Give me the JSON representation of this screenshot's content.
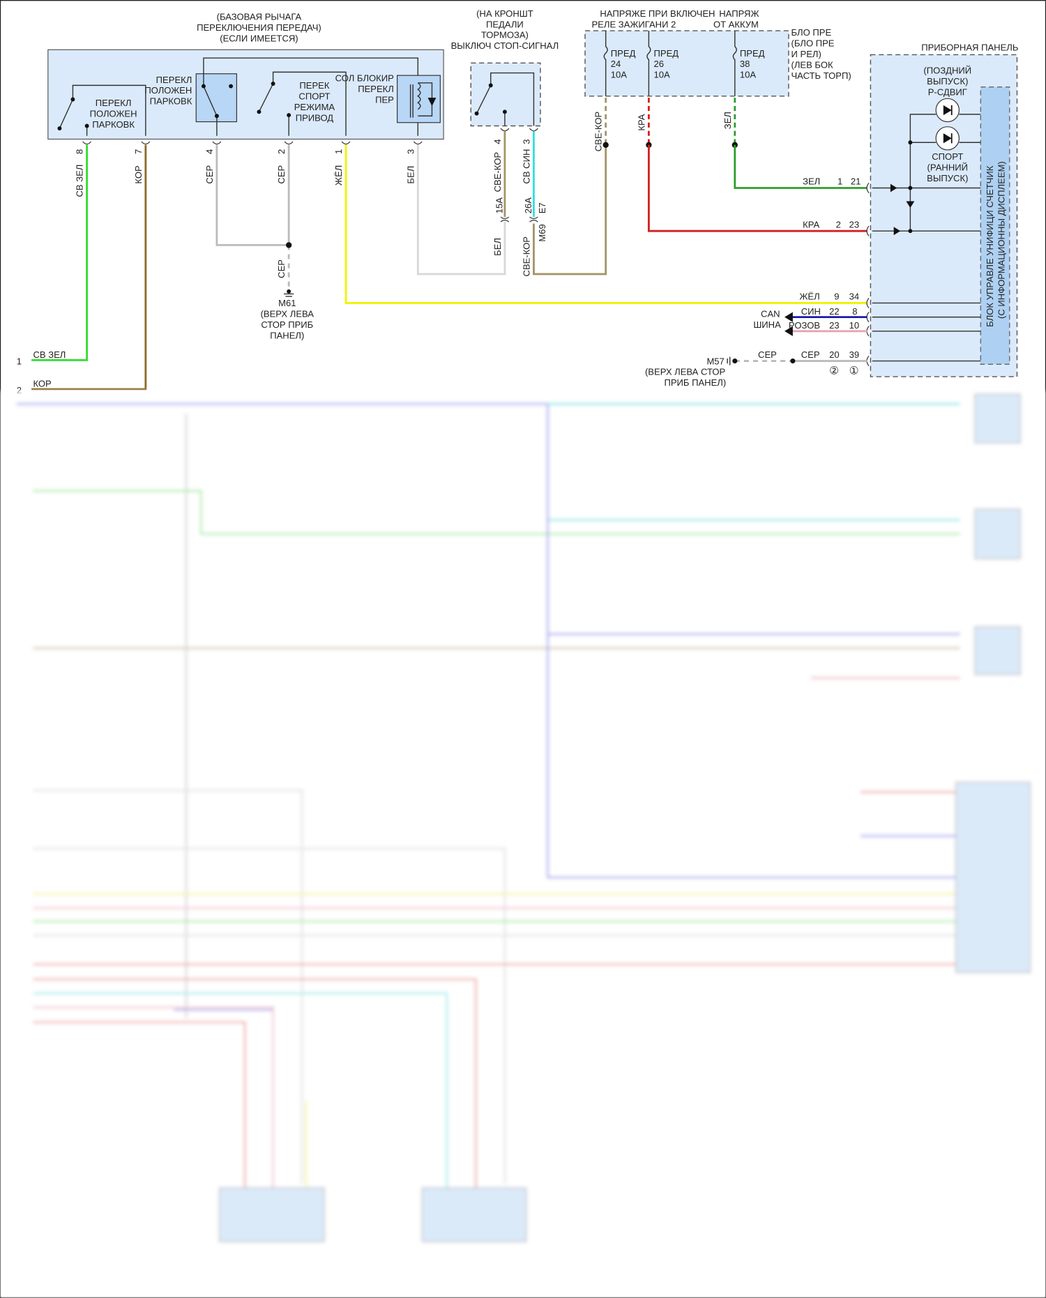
{
  "colors": {
    "green_light": "#33dd33",
    "green": "#2e9e2e",
    "brown": "#8a6a2a",
    "tan": "#a59468",
    "gray": "#bbbbbb",
    "yellow": "#f2f200",
    "white_wire": "#d8d8d8",
    "cyan": "#33e0e0",
    "red": "#d62020",
    "blue": "#1a1ab0",
    "pink": "#e9a3b3",
    "purple": "#8888ee",
    "module_fill": "#dbeafb"
  },
  "gear_module": {
    "title": [
      "(БАЗОВАЯ РЫЧАГА",
      "ПЕРЕКЛЮЧЕНИЯ ПЕРЕДАЧ)",
      "(ЕСЛИ ИМЕЕТСЯ)"
    ],
    "park_switch_left": [
      "ПЕРЕКЛ",
      "ПОЛОЖЕН",
      "ПАРКОВК"
    ],
    "park_switch_right": [
      "ПЕРЕКЛ",
      "ПОЛОЖЕН",
      "ПАРКОВК"
    ],
    "sport_switch": [
      "ПЕРЕК",
      "СПОРТ",
      "РЕЖИМА",
      "ПРИВОД"
    ],
    "solenoid": [
      "СОЛ БЛОКИР",
      "ПЕРЕКЛ",
      "ПЕР"
    ],
    "pins": [
      "8",
      "7",
      "4",
      "2",
      "1",
      "3"
    ],
    "wires": [
      "СВ ЗЕЛ",
      "КОР",
      "СЕР",
      "СЕР",
      "ЖЁЛ",
      "БЕЛ"
    ]
  },
  "ground_m61": {
    "wire": "СЕР",
    "id": "M61",
    "location": [
      "(ВЕРХ ЛЕВА",
      "СТОР ПРИБ",
      "ПАНЕЛ)"
    ]
  },
  "left_connector": [
    {
      "pin": "1",
      "wire": "СВ ЗЕЛ"
    },
    {
      "pin": "2",
      "wire": "КОР"
    }
  ],
  "stop_switch": {
    "title": [
      "(НА КРОНШТ",
      "ПЕДАЛИ",
      "ТОРМОЗА)",
      "ВЫКЛЮЧ СТОП-СИГНАЛ"
    ],
    "pins": [
      "4",
      "3"
    ],
    "wires": [
      "СВЕ-КОР",
      "СВ СИН"
    ],
    "connectors": [
      "15A",
      "26A",
      "E7",
      "M69"
    ],
    "wires_below": [
      "БЕЛ",
      "СВЕ-КОР"
    ]
  },
  "fuse_box": {
    "header": [
      "НАПРЯЖЕ ПРИ ВКЛЮЧЕН",
      "РЕЛЕ ЗАЖИГАНИ 2",
      "НАПРЯЖ",
      "ОТ АККУМ"
    ],
    "label": [
      "БЛО ПРЕ",
      "(БЛО ПРЕ",
      "И РЕЛ)",
      "(ЛЕВ БОК",
      "ЧАСТЬ ТОРП)"
    ],
    "fuses": [
      {
        "name": "ПРЕД",
        "num": "24",
        "amp": "10A"
      },
      {
        "name": "ПРЕД",
        "num": "26",
        "amp": "10A"
      },
      {
        "name": "ПРЕД",
        "num": "38",
        "amp": "10A"
      }
    ],
    "wires": [
      "СВЕ-КОР",
      "КРА",
      "ЗЕЛ"
    ]
  },
  "instrument_panel": {
    "title": "ПРИБОРНАЯ ПАНЕЛЬ",
    "module": [
      "БЛОК УПРАВЛЕ УНИФИЦИ СЧЕТЧИК",
      "(С ИНФОРМАЦИОННЫ ДИСПЛЕЕМ)"
    ],
    "p_shift": [
      "(ПОЗДНИЙ",
      "ВЫПУСК)",
      "Р-СДВИГ"
    ],
    "sport": [
      "СПОРТ",
      "(РАННИЙ",
      "ВЫПУСК)"
    ],
    "wires": [
      {
        "wire": "ЗЕЛ",
        "pin_a": "1",
        "pin_b": "21"
      },
      {
        "wire": "КРА",
        "pin_a": "2",
        "pin_b": "23"
      },
      {
        "wire": "ЖЁЛ",
        "pin_a": "9",
        "pin_b": "34"
      },
      {
        "wire": "СИН",
        "pin_a": "22",
        "pin_b": "8"
      },
      {
        "wire": "РОЗОВ",
        "pin_a": "23",
        "pin_b": "10"
      },
      {
        "wire": "СЕР",
        "pin_a": "20",
        "pin_b": "39"
      }
    ],
    "can_bus": [
      "CAN",
      "ШИНА"
    ],
    "ground": {
      "wire": "СЕР",
      "id": "M57",
      "location": [
        "(ВЕРХ ЛЕВА СТОР",
        "ПРИБ ПАНЕЛ)"
      ]
    },
    "notes": [
      "②",
      "①"
    ]
  }
}
